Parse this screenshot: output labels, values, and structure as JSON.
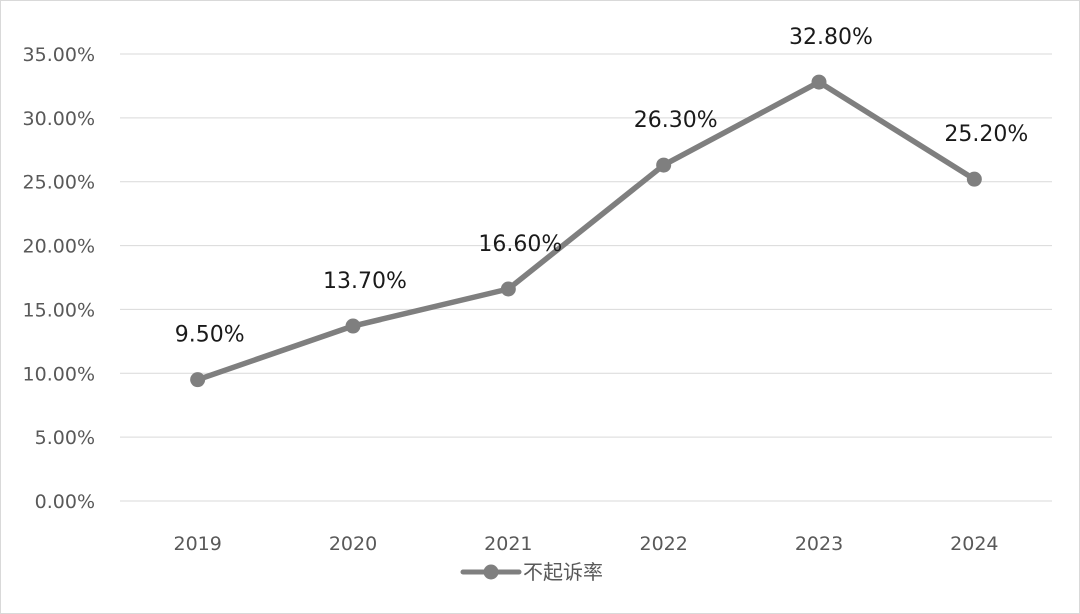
{
  "chart_data": {
    "type": "line",
    "categories": [
      "2019",
      "2020",
      "2021",
      "2022",
      "2023",
      "2024"
    ],
    "series": [
      {
        "name": "不起诉率",
        "values": [
          9.5,
          13.7,
          16.6,
          26.3,
          32.8,
          25.2
        ],
        "labels": [
          "9.50%",
          "13.70%",
          "16.60%",
          "26.30%",
          "32.80%",
          "25.20%"
        ],
        "color": "#7f7f7f"
      }
    ],
    "y_ticks": [
      "0.00%",
      "5.00%",
      "10.00%",
      "15.00%",
      "20.00%",
      "25.00%",
      "30.00%",
      "35.00%"
    ],
    "ylim": [
      0,
      35
    ],
    "grid": true,
    "legend_position": "bottom",
    "title": "",
    "xlabel": "",
    "ylabel": ""
  }
}
